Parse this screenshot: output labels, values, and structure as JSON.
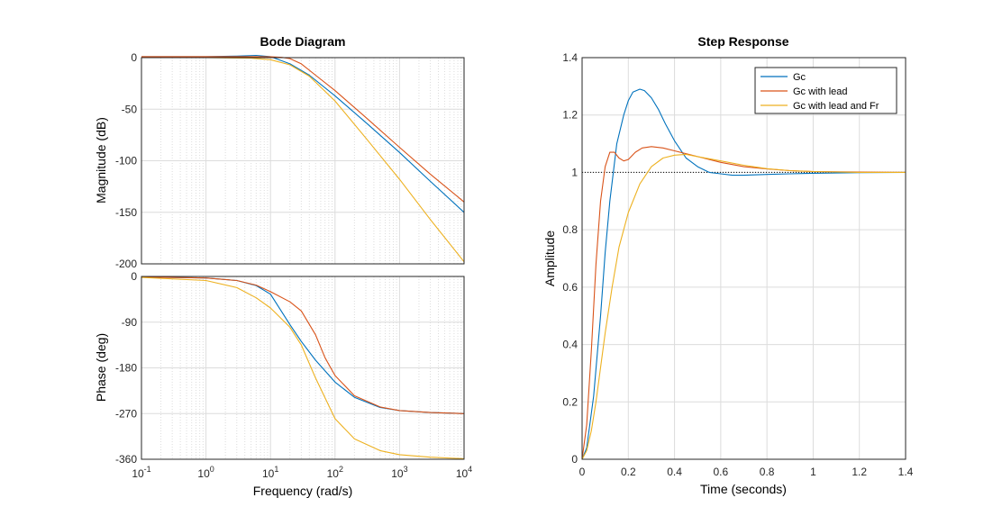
{
  "colors": {
    "Gc": "#0072BD",
    "Gc with lead": "#D95319",
    "Gc with lead and Fr": "#EDB120"
  },
  "chart_data": [
    {
      "type": "line",
      "title": "Bode Diagram",
      "subplots": [
        {
          "ylabel": "Magnitude (dB)",
          "ylim": [
            -200,
            0
          ],
          "yticks": [
            "0",
            "-50",
            "-100",
            "-150",
            "-200"
          ],
          "xlog": true,
          "xlim": [
            0.1,
            10000
          ],
          "grid": true,
          "series": [
            {
              "name": "Gc",
              "x": [
                0.1,
                1,
                3,
                6,
                10,
                20,
                40,
                100,
                300,
                1000,
                3000,
                10000
              ],
              "y": [
                1,
                1,
                1.5,
                2.2,
                1,
                -6,
                -17,
                -37,
                -63,
                -92,
                -120,
                -150
              ]
            },
            {
              "name": "Gc with lead",
              "x": [
                0.1,
                1,
                5,
                10,
                15,
                20,
                30,
                50,
                100,
                300,
                1000,
                3000,
                10000
              ],
              "y": [
                1,
                1,
                1,
                0.8,
                0.3,
                -1,
                -6,
                -17,
                -32,
                -58,
                -87,
                -113,
                -140
              ]
            },
            {
              "name": "Gc with lead and Fr",
              "x": [
                0.1,
                1,
                5,
                10,
                20,
                40,
                100,
                300,
                1000,
                3000,
                10000
              ],
              "y": [
                0,
                0,
                -0.5,
                -2,
                -7,
                -18,
                -42,
                -78,
                -118,
                -157,
                -198
              ]
            }
          ]
        },
        {
          "ylabel": "Phase (deg)",
          "ylim": [
            -360,
            0
          ],
          "yticks": [
            "0",
            "-90",
            "-180",
            "-270",
            "-360"
          ],
          "xlabel": "Frequency  (rad/s)",
          "xlog": true,
          "xlim": [
            0.1,
            10000
          ],
          "xticks": [
            "10-1",
            "100",
            "101",
            "102",
            "103",
            "104"
          ],
          "grid": true,
          "series": [
            {
              "name": "Gc",
              "x": [
                0.1,
                1,
                3,
                6,
                10,
                20,
                30,
                50,
                100,
                200,
                500,
                1000,
                3000,
                10000
              ],
              "y": [
                -1,
                -3,
                -8,
                -18,
                -35,
                -95,
                -128,
                -165,
                -208,
                -238,
                -258,
                -264,
                -268,
                -270
              ]
            },
            {
              "name": "Gc with lead",
              "x": [
                0.1,
                1,
                3,
                6,
                10,
                20,
                30,
                50,
                70,
                100,
                200,
                500,
                1000,
                3000,
                10000
              ],
              "y": [
                -1,
                -3,
                -8,
                -17,
                -30,
                -50,
                -68,
                -115,
                -160,
                -195,
                -235,
                -257,
                -264,
                -268,
                -270
              ]
            },
            {
              "name": "Gc with lead and Fr",
              "x": [
                0.1,
                1,
                3,
                6,
                10,
                20,
                30,
                50,
                100,
                200,
                500,
                1000,
                3000,
                10000
              ],
              "y": [
                -2,
                -8,
                -22,
                -42,
                -62,
                -100,
                -135,
                -200,
                -280,
                -320,
                -343,
                -351,
                -356,
                -359
              ]
            }
          ]
        }
      ]
    },
    {
      "type": "line",
      "title": "Step Response",
      "xlabel": "Time (seconds)",
      "ylabel": "Amplitude",
      "xlim": [
        0,
        1.4
      ],
      "ylim": [
        0,
        1.4
      ],
      "xticks": [
        "0",
        "0.2",
        "0.4",
        "0.6",
        "0.8",
        "1",
        "1.2",
        "1.4"
      ],
      "yticks": [
        "0",
        "0.2",
        "0.4",
        "0.6",
        "0.8",
        "1",
        "1.2",
        "1.4"
      ],
      "grid": true,
      "legend": {
        "position": "top-right",
        "entries": [
          "Gc",
          "Gc with lead",
          "Gc with lead and Fr"
        ]
      },
      "reference_line": 1.0,
      "series": [
        {
          "name": "Gc",
          "x": [
            0,
            0.02,
            0.05,
            0.08,
            0.1,
            0.12,
            0.15,
            0.18,
            0.2,
            0.22,
            0.25,
            0.27,
            0.3,
            0.33,
            0.36,
            0.4,
            0.45,
            0.5,
            0.55,
            0.6,
            0.65,
            0.7,
            0.8,
            0.9,
            1.0,
            1.2,
            1.4
          ],
          "y": [
            0,
            0.04,
            0.22,
            0.5,
            0.72,
            0.9,
            1.1,
            1.2,
            1.25,
            1.28,
            1.29,
            1.285,
            1.26,
            1.22,
            1.17,
            1.11,
            1.05,
            1.02,
            1.0,
            0.995,
            0.99,
            0.99,
            0.993,
            0.995,
            0.997,
            0.999,
            1.0
          ]
        },
        {
          "name": "Gc with lead",
          "x": [
            0,
            0.02,
            0.04,
            0.06,
            0.08,
            0.1,
            0.12,
            0.14,
            0.16,
            0.18,
            0.2,
            0.23,
            0.26,
            0.3,
            0.35,
            0.4,
            0.5,
            0.6,
            0.7,
            0.8,
            0.9,
            1.0,
            1.2,
            1.4
          ],
          "y": [
            0,
            0.12,
            0.38,
            0.68,
            0.9,
            1.02,
            1.07,
            1.07,
            1.05,
            1.04,
            1.045,
            1.07,
            1.085,
            1.09,
            1.085,
            1.075,
            1.055,
            1.035,
            1.02,
            1.012,
            1.006,
            1.003,
            1.001,
            1.0
          ]
        },
        {
          "name": "Gc with lead and Fr",
          "x": [
            0,
            0.02,
            0.04,
            0.06,
            0.08,
            0.1,
            0.13,
            0.16,
            0.2,
            0.25,
            0.3,
            0.35,
            0.4,
            0.45,
            0.5,
            0.6,
            0.7,
            0.8,
            0.9,
            1.0,
            1.2,
            1.4
          ],
          "y": [
            0,
            0.03,
            0.1,
            0.2,
            0.32,
            0.44,
            0.6,
            0.74,
            0.86,
            0.96,
            1.02,
            1.05,
            1.06,
            1.063,
            1.055,
            1.04,
            1.025,
            1.013,
            1.006,
            1.003,
            1.0,
            1.0
          ]
        }
      ]
    }
  ]
}
